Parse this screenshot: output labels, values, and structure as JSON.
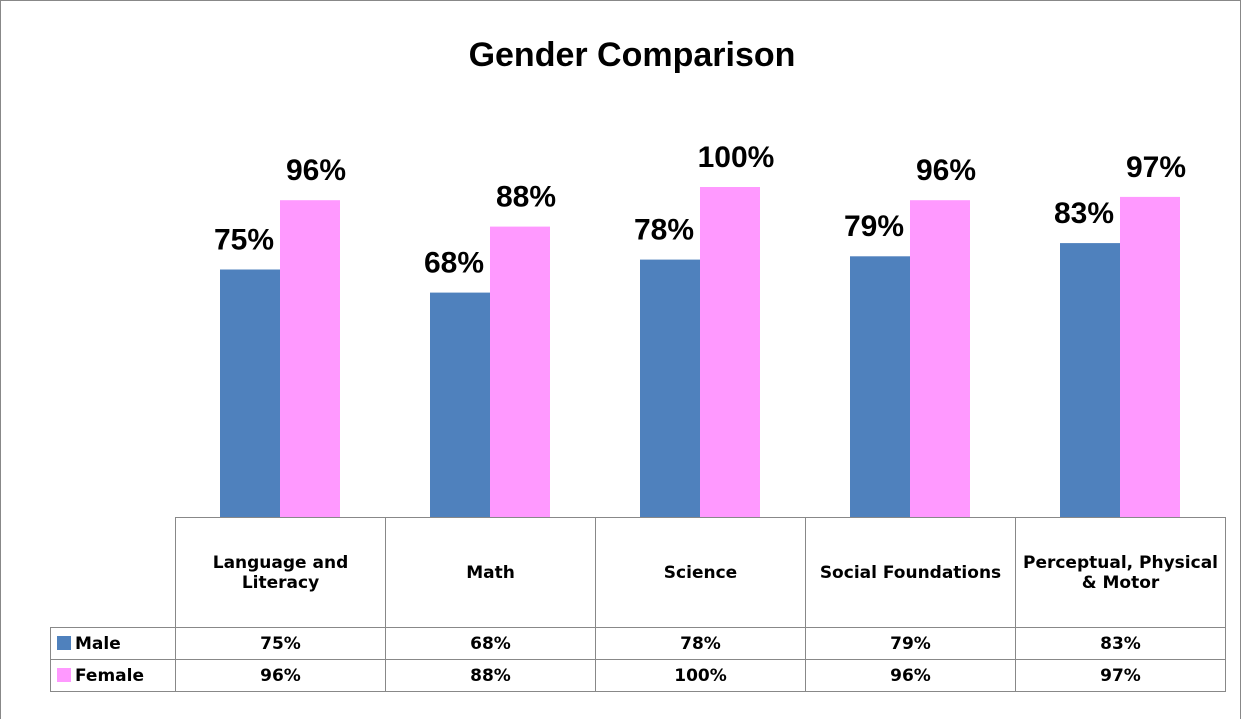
{
  "chart_data": {
    "type": "bar",
    "title": "Gender Comparison",
    "categories": [
      "Language and Literacy",
      "Math",
      "Science",
      "Social Foundations",
      "Perceptual, Physical & Motor"
    ],
    "series": [
      {
        "name": "Male",
        "color": "#4f81bd",
        "values": [
          75,
          68,
          78,
          79,
          83
        ],
        "value_labels": [
          "75%",
          "68%",
          "78%",
          "79%",
          "83%"
        ]
      },
      {
        "name": "Female",
        "color": "#ff99ff",
        "values": [
          96,
          88,
          100,
          96,
          97
        ],
        "value_labels": [
          "96%",
          "88%",
          "100%",
          "96%",
          "97%"
        ]
      }
    ],
    "ylim": [
      0,
      100
    ]
  }
}
